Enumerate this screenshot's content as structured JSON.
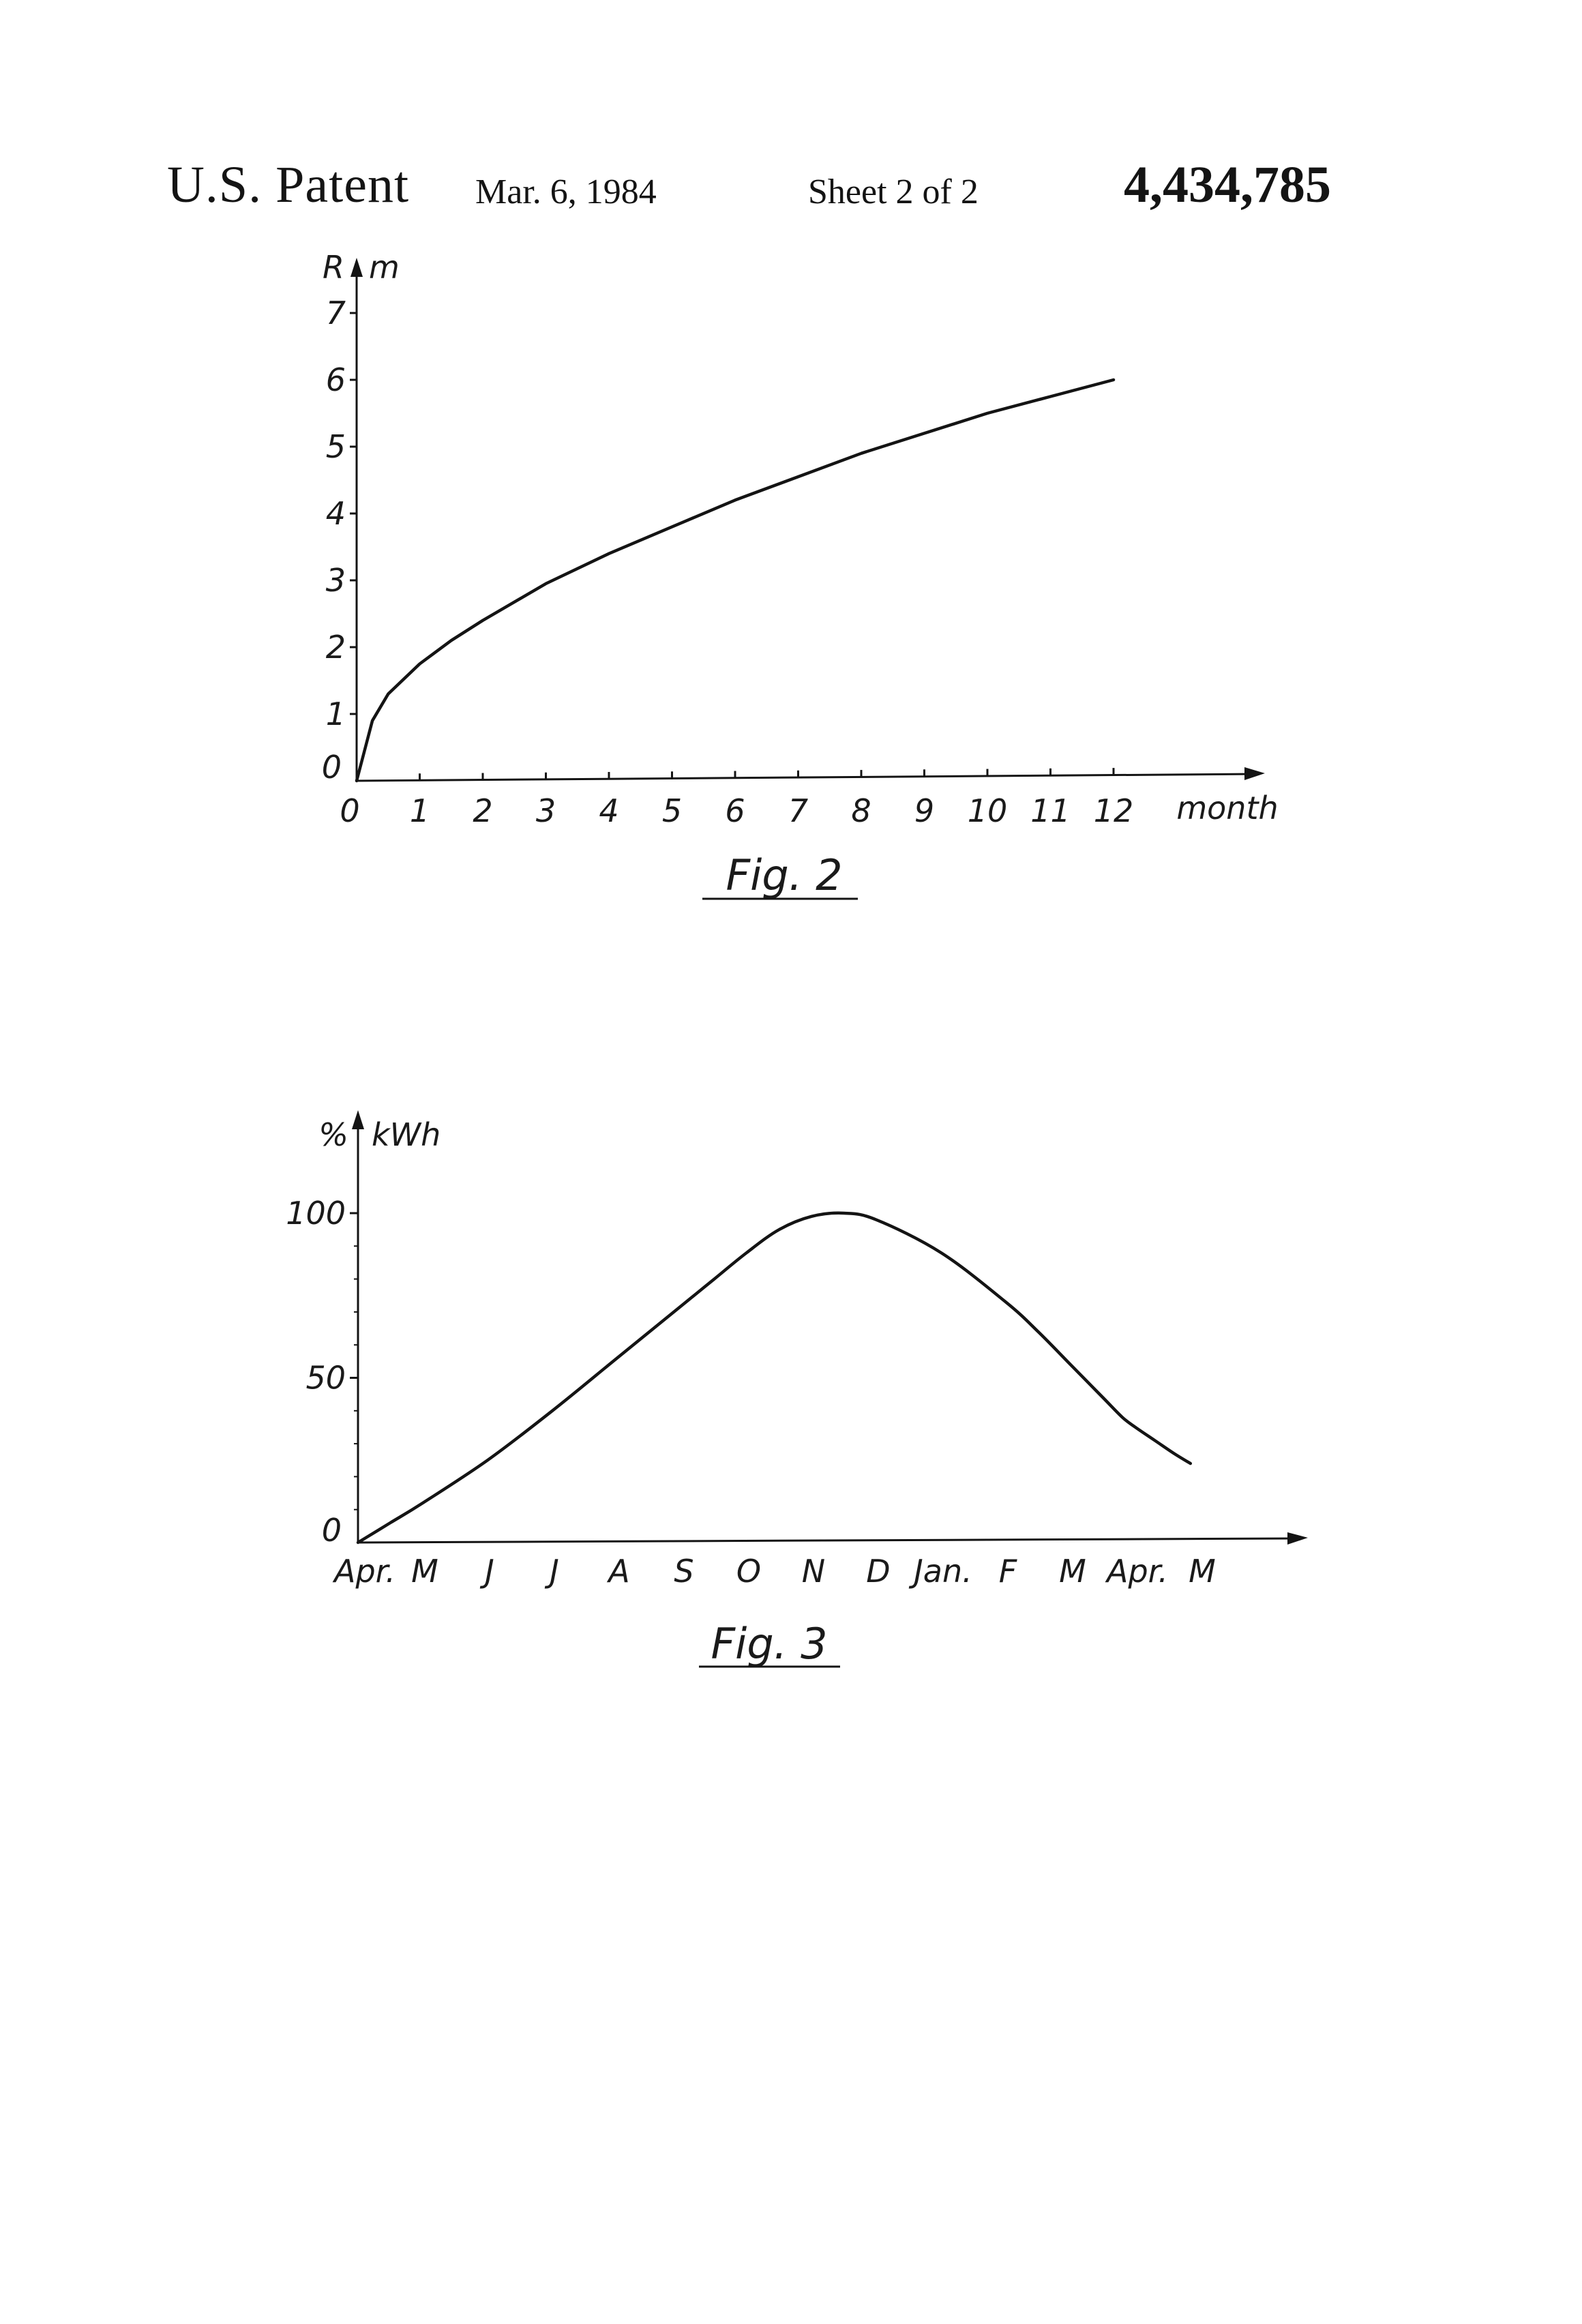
{
  "header": {
    "label": "U.S. Patent",
    "date": "Mar. 6, 1984",
    "sheet": "Sheet 2 of 2",
    "patent_number": "4,434,785"
  },
  "chart_data": [
    {
      "type": "line",
      "figure_label": "Fig. 2",
      "ylabel": "R",
      "yunit": "m",
      "xlabel": "month",
      "xlim": [
        0,
        13.5
      ],
      "ylim": [
        0,
        7
      ],
      "x_ticks": [
        "0",
        "1",
        "2",
        "3",
        "4",
        "5",
        "6",
        "7",
        "8",
        "9",
        "10",
        "11",
        "12"
      ],
      "y_ticks": [
        "0",
        "1",
        "2",
        "3",
        "4",
        "5",
        "6",
        "7"
      ],
      "grid": false,
      "series": [
        {
          "x": [
            0,
            0.25,
            0.5,
            1,
            1.5,
            2,
            3,
            4,
            5,
            6,
            7,
            8,
            9,
            10,
            11,
            12
          ],
          "y": [
            0,
            0.9,
            1.3,
            1.75,
            2.1,
            2.4,
            2.95,
            3.4,
            3.8,
            4.2,
            4.55,
            4.9,
            5.2,
            5.5,
            5.75,
            6.0
          ]
        }
      ],
      "color": "#141414"
    },
    {
      "type": "line",
      "figure_label": "Fig. 3",
      "ylabel": "%",
      "yunit": "kWh",
      "xlabel": "",
      "ylim": [
        0,
        110
      ],
      "categories": [
        "Apr.",
        "M",
        "J",
        "J",
        "A",
        "S",
        "O",
        "N",
        "D",
        "Jan.",
        "F",
        "M",
        "Apr.",
        "M"
      ],
      "y_ticks": [
        "0",
        "50",
        "100"
      ],
      "grid": false,
      "series": [
        {
          "x": [
            0,
            0.5,
            1,
            2,
            3,
            4,
            5,
            5.5,
            6,
            6.5,
            7,
            7.5,
            8,
            9,
            10,
            10.5,
            11,
            11.5,
            11.8,
            12,
            12.3,
            12.6,
            12.85
          ],
          "y": [
            0,
            6,
            12,
            25,
            40,
            56,
            72,
            80,
            88,
            95,
            99,
            100,
            98,
            88,
            73,
            64,
            54,
            44,
            38,
            35,
            31,
            27,
            24
          ]
        }
      ],
      "color": "#141414"
    }
  ]
}
